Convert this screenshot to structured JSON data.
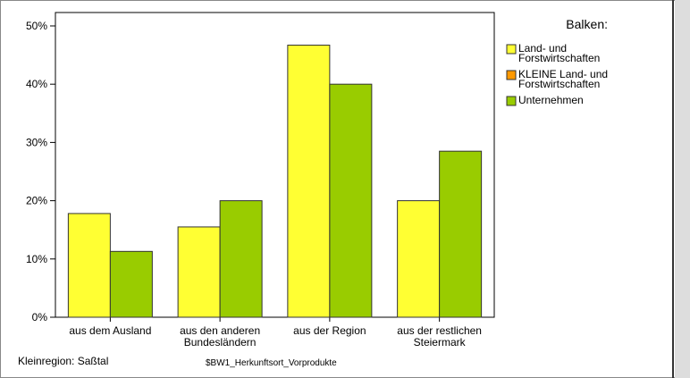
{
  "chart_data": {
    "type": "bar",
    "categories": [
      "aus dem Ausland",
      "aus den anderen\nBundesländern",
      "aus der Region",
      "aus der restlichen\nSteiermark"
    ],
    "series": [
      {
        "name": "Land- und\nForstwirtschaften",
        "color": "#ffff33",
        "values": [
          17.8,
          15.5,
          46.7,
          20.0
        ]
      },
      {
        "name": "KLEINE Land- und\nForstwirtschaften",
        "color": "#ff9900",
        "values": [
          null,
          null,
          null,
          null
        ]
      },
      {
        "name": "Unternehmen",
        "color": "#99cc00",
        "values": [
          11.3,
          20.0,
          40.0,
          28.5
        ]
      }
    ],
    "ylim": [
      0,
      52.3
    ],
    "yticks": [
      {
        "value": 0,
        "label": "0%"
      },
      {
        "value": 10,
        "label": "10%"
      },
      {
        "value": 20,
        "label": "20%"
      },
      {
        "value": 30,
        "label": "30%"
      },
      {
        "value": 40,
        "label": "40%"
      },
      {
        "value": 50,
        "label": "50%"
      }
    ],
    "legend_title": "Balken:",
    "footer_left": "Kleinregion: Saßtal",
    "footer_center": "$BW1_Herkunftsort_Vorprodukte"
  }
}
